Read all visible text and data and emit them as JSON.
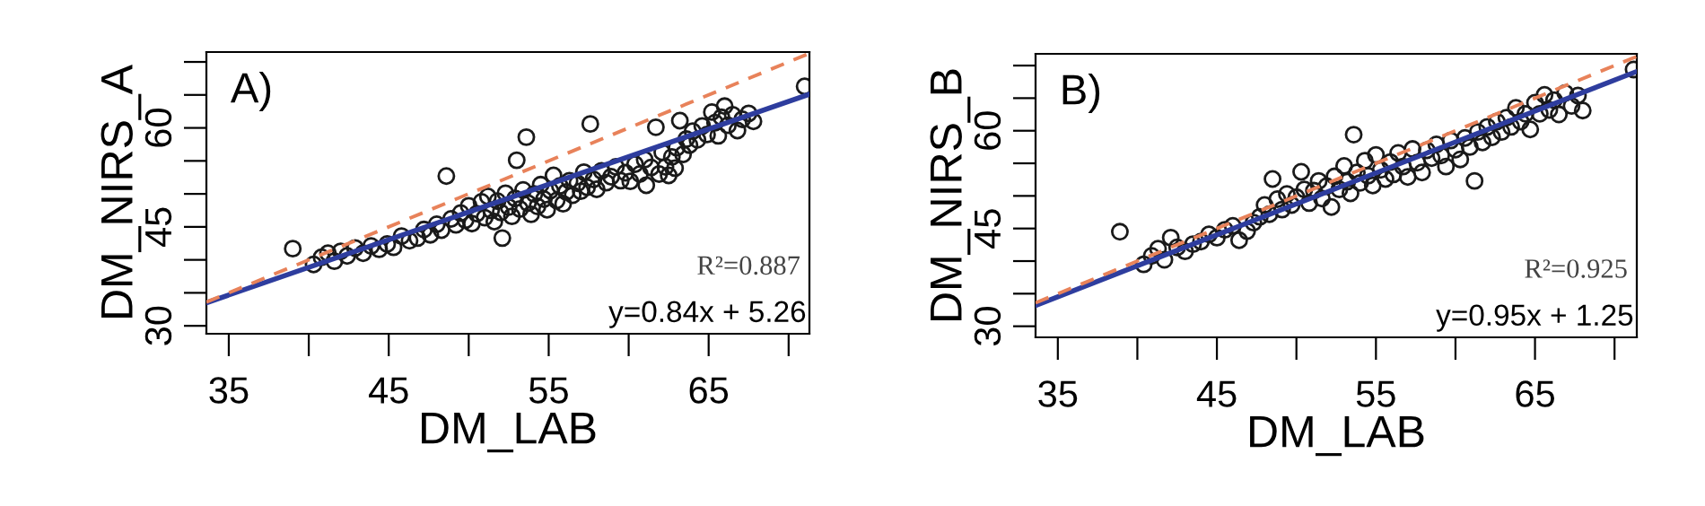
{
  "chart_data": [
    {
      "type": "scatter",
      "xlabel": "DM_LAB",
      "ylabel": "DM_NIRS_A",
      "xlim": [
        33.6,
        71.3
      ],
      "ylim": [
        28.8,
        71.5
      ],
      "xticks": [
        35,
        {
          "value": 40,
          "label": null
        },
        45,
        {
          "value": 50,
          "label": null
        },
        55,
        {
          "value": 60,
          "label": null
        },
        65,
        {
          "value": 70,
          "label": null
        }
      ],
      "yticks": [
        30,
        {
          "value": 35,
          "label": null
        },
        {
          "value": 40,
          "label": null
        },
        45,
        {
          "value": 50,
          "label": null
        },
        {
          "value": 55,
          "label": null
        },
        60,
        {
          "value": 65,
          "label": null
        },
        {
          "value": 70,
          "label": null
        }
      ],
      "grid": false,
      "legend": false,
      "annotations": [
        "A)",
        "R²=0.887",
        "y=0.84x + 5.26"
      ],
      "series": [
        {
          "marker": "circle",
          "color": "#1a1a1a",
          "x": [
            39.0,
            40.3,
            40.8,
            41.2,
            41.6,
            42.0,
            42.4,
            42.9,
            43.4,
            43.9,
            44.4,
            44.9,
            45.3,
            45.8,
            46.3,
            46.8,
            47.2,
            47.6,
            48.0,
            48.3,
            48.6,
            48.9,
            49.2,
            49.5,
            49.8,
            50.0,
            50.2,
            50.5,
            50.8,
            51.0,
            51.2,
            51.4,
            51.6,
            51.8,
            52.0,
            52.1,
            52.3,
            52.5,
            52.7,
            52.9,
            53.0,
            53.2,
            53.4,
            53.6,
            53.7,
            53.9,
            54.1,
            54.3,
            54.5,
            54.7,
            54.9,
            55.1,
            55.3,
            55.5,
            55.7,
            55.9,
            56.1,
            56.3,
            56.5,
            56.8,
            57.0,
            57.2,
            57.4,
            57.6,
            57.8,
            58.0,
            58.3,
            58.6,
            58.9,
            59.2,
            59.5,
            59.8,
            60.1,
            60.4,
            60.7,
            61.0,
            61.1,
            61.4,
            61.7,
            61.9,
            62.1,
            62.3,
            62.5,
            62.7,
            62.9,
            63.0,
            63.2,
            63.4,
            63.6,
            63.8,
            64.0,
            64.3,
            64.6,
            64.9,
            65.2,
            65.4,
            65.6,
            65.8,
            66.0,
            66.2,
            66.5,
            66.8,
            67.1,
            67.5,
            67.8,
            71.0
          ],
          "values": [
            41.7,
            39.3,
            40.4,
            41.0,
            39.8,
            41.3,
            40.6,
            41.8,
            41.0,
            42.1,
            41.6,
            42.4,
            41.9,
            43.6,
            42.9,
            43.3,
            44.6,
            43.8,
            45.4,
            44.5,
            52.7,
            46.2,
            45.3,
            47.1,
            46.0,
            48.2,
            45.5,
            47.0,
            48.8,
            46.4,
            49.6,
            47.5,
            45.8,
            48.9,
            47.2,
            43.3,
            50.1,
            48.0,
            46.6,
            49.3,
            55.1,
            47.7,
            50.6,
            58.6,
            48.6,
            46.9,
            50.0,
            48.1,
            51.4,
            49.2,
            47.6,
            50.5,
            52.8,
            49.0,
            51.2,
            48.5,
            50.3,
            52.0,
            49.8,
            51.6,
            50.4,
            53.3,
            51.0,
            60.6,
            52.2,
            50.7,
            53.5,
            51.7,
            52.6,
            54.1,
            52.0,
            53.2,
            51.9,
            54.5,
            53.0,
            55.2,
            51.3,
            54.0,
            60.1,
            53.0,
            56.3,
            54.1,
            52.8,
            55.6,
            53.9,
            57.0,
            61.1,
            56.0,
            58.3,
            57.4,
            59.5,
            58.2,
            60.3,
            59.0,
            62.4,
            60.8,
            58.8,
            61.6,
            63.3,
            60.4,
            62.0,
            59.6,
            61.3,
            62.2,
            61.0,
            66.3
          ]
        },
        {
          "type": "line",
          "color": "#2e3d9e",
          "line_style": "solid",
          "x": [
            33.6,
            71.3
          ],
          "values": [
            33.5,
            65.1
          ]
        },
        {
          "type": "line",
          "color": "#e8825a",
          "line_style": "dashed",
          "x": [
            33.6,
            71.3
          ],
          "values": [
            33.6,
            71.3
          ]
        }
      ]
    },
    {
      "type": "scatter",
      "xlabel": "DM_LAB",
      "ylabel": "DM_NIRS_B",
      "xlim": [
        33.6,
        71.4
      ],
      "ylim": [
        28.3,
        71.8
      ],
      "xticks": [
        35,
        {
          "value": 40,
          "label": null
        },
        45,
        {
          "value": 50,
          "label": null
        },
        55,
        {
          "value": 60,
          "label": null
        },
        65,
        {
          "value": 70,
          "label": null
        }
      ],
      "yticks": [
        30,
        {
          "value": 35,
          "label": null
        },
        {
          "value": 40,
          "label": null
        },
        45,
        {
          "value": 50,
          "label": null
        },
        {
          "value": 55,
          "label": null
        },
        60,
        {
          "value": 65,
          "label": null
        },
        {
          "value": 70,
          "label": null
        }
      ],
      "grid": false,
      "legend": false,
      "annotations": [
        "B)",
        "R²=0.925",
        "y=0.95x + 1.25"
      ],
      "series": [
        {
          "marker": "circle",
          "color": "#1a1a1a",
          "x": [
            38.9,
            40.4,
            40.9,
            41.3,
            41.7,
            42.1,
            42.5,
            43.0,
            43.5,
            44.0,
            44.5,
            45.0,
            45.5,
            46.0,
            46.4,
            46.9,
            47.3,
            47.7,
            48.0,
            48.3,
            48.5,
            48.8,
            49.1,
            49.4,
            49.7,
            50.0,
            50.3,
            50.5,
            50.8,
            51.1,
            51.4,
            51.6,
            51.9,
            52.2,
            52.4,
            52.7,
            53.0,
            53.2,
            53.4,
            53.6,
            53.8,
            54.0,
            54.3,
            54.5,
            54.8,
            55.0,
            55.3,
            55.6,
            55.9,
            56.1,
            56.4,
            56.7,
            57.0,
            57.3,
            57.6,
            57.9,
            58.2,
            58.5,
            58.8,
            59.1,
            59.4,
            59.7,
            60.0,
            60.3,
            60.6,
            60.9,
            61.2,
            61.4,
            61.7,
            62.0,
            62.3,
            62.6,
            62.9,
            63.2,
            63.5,
            63.8,
            64.1,
            64.4,
            64.7,
            65.0,
            65.3,
            65.6,
            65.9,
            66.2,
            66.5,
            66.9,
            67.3,
            67.7,
            68.0,
            71.2
          ],
          "values": [
            44.5,
            39.5,
            40.8,
            41.9,
            40.2,
            43.6,
            42.1,
            41.5,
            42.6,
            43.0,
            44.1,
            43.6,
            44.8,
            45.4,
            43.2,
            44.6,
            45.9,
            46.8,
            48.6,
            47.2,
            52.6,
            49.5,
            47.9,
            50.3,
            48.6,
            49.8,
            53.7,
            51.0,
            48.9,
            50.8,
            52.3,
            49.6,
            51.5,
            48.3,
            53.0,
            51.0,
            54.6,
            52.2,
            50.4,
            59.4,
            53.6,
            52.0,
            55.4,
            53.1,
            51.6,
            56.3,
            54.0,
            52.6,
            55.2,
            53.3,
            56.6,
            54.5,
            52.9,
            57.2,
            55.1,
            53.6,
            57.0,
            55.8,
            57.9,
            56.2,
            54.5,
            58.5,
            57.1,
            55.6,
            58.9,
            57.5,
            52.3,
            59.8,
            58.2,
            60.6,
            59.0,
            61.4,
            59.8,
            62.0,
            60.6,
            63.5,
            61.4,
            62.6,
            60.2,
            64.3,
            62.6,
            65.5,
            63.2,
            64.7,
            62.5,
            65.8,
            63.8,
            65.4,
            63.1,
            69.4
          ]
        },
        {
          "type": "line",
          "color": "#2e3d9e",
          "line_style": "solid",
          "x": [
            33.6,
            71.4
          ],
          "values": [
            33.2,
            69.1
          ]
        },
        {
          "type": "line",
          "color": "#e8825a",
          "line_style": "dashed",
          "x": [
            33.6,
            71.4
          ],
          "values": [
            33.6,
            71.4
          ]
        }
      ]
    }
  ]
}
